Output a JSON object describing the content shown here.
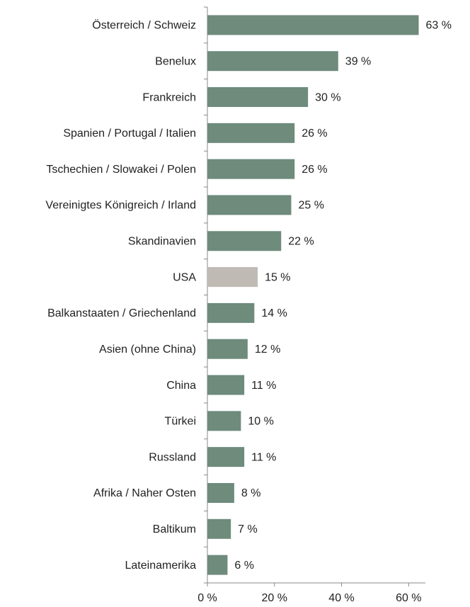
{
  "chart_data": {
    "type": "barh",
    "categories": [
      "Österreich / Schweiz",
      "Benelux",
      "Frankreich",
      "Spanien / Portugal / Italien",
      "Tschechien / Slowakei / Polen",
      "Vereinigtes Königreich / Irland",
      "Skandinavien",
      "USA",
      "Balkanstaaten / Griechenland",
      "Asien (ohne China)",
      "China",
      "Türkei",
      "Russland",
      "Afrika / Naher Osten",
      "Baltikum",
      "Lateinamerika"
    ],
    "values": [
      63,
      39,
      30,
      26,
      26,
      25,
      22,
      15,
      14,
      12,
      11,
      10,
      11,
      8,
      7,
      6
    ],
    "value_labels": [
      "63 %",
      "39 %",
      "30 %",
      "26 %",
      "26 %",
      "25 %",
      "22 %",
      "15 %",
      "14 %",
      "12 %",
      "11 %",
      "10 %",
      "11 %",
      "8 %",
      "7 %",
      "6 %"
    ],
    "colors": [
      "#6e8b7c",
      "#6e8b7c",
      "#6e8b7c",
      "#6e8b7c",
      "#6e8b7c",
      "#6e8b7c",
      "#6e8b7c",
      "#c0bab5",
      "#6e8b7c",
      "#6e8b7c",
      "#6e8b7c",
      "#6e8b7c",
      "#6e8b7c",
      "#6e8b7c",
      "#6e8b7c",
      "#6e8b7c"
    ],
    "xlim": [
      0,
      65
    ],
    "xticks": [
      {
        "value": 0,
        "label": "0 %"
      },
      {
        "value": 20,
        "label": "20 %"
      },
      {
        "value": 40,
        "label": "40 %"
      },
      {
        "value": 60,
        "label": "60 %"
      }
    ]
  }
}
